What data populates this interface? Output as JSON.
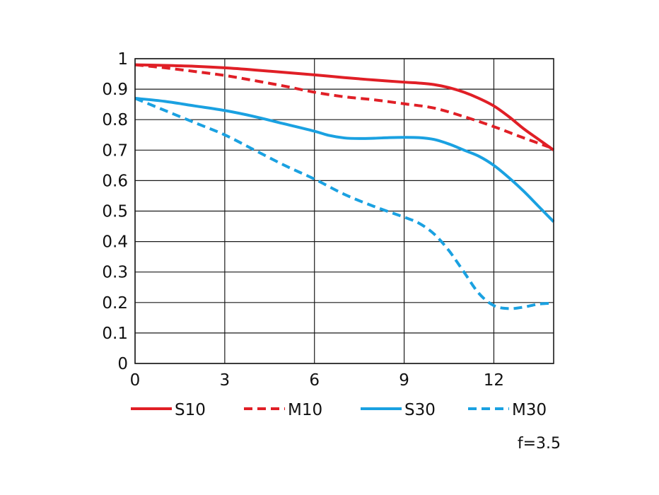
{
  "chart_data": {
    "type": "line",
    "title": "",
    "xlabel": "",
    "ylabel": "",
    "xlim": [
      0,
      14
    ],
    "ylim": [
      0,
      1
    ],
    "xticks": [
      0,
      3,
      6,
      9,
      12
    ],
    "yticks": [
      0,
      0.1,
      0.2,
      0.3,
      0.4,
      0.5,
      0.6,
      0.7,
      0.8,
      0.9,
      1
    ],
    "ytick_labels": [
      "0",
      "0.1",
      "0.2",
      "0.3",
      "0.4",
      "0.5",
      "0.6",
      "0.7",
      "0.8",
      "0.9",
      "1"
    ],
    "grid": true,
    "legend_placement": "bottom",
    "note": "f=3.5",
    "series": [
      {
        "name": "S10",
        "color": "#e01f26",
        "dashed": false,
        "x": [
          0,
          1,
          2,
          3,
          4,
          5,
          6,
          7,
          8,
          9,
          9.5,
          10,
          10.5,
          11,
          11.5,
          12,
          12.5,
          13,
          13.5,
          14
        ],
        "y": [
          0.98,
          0.978,
          0.975,
          0.97,
          0.963,
          0.955,
          0.947,
          0.938,
          0.93,
          0.923,
          0.92,
          0.915,
          0.905,
          0.89,
          0.87,
          0.845,
          0.81,
          0.77,
          0.735,
          0.7
        ]
      },
      {
        "name": "M10",
        "color": "#e01f26",
        "dashed": true,
        "x": [
          0,
          1,
          2,
          3,
          4,
          5,
          6,
          7,
          8,
          9,
          10,
          11,
          12,
          13,
          14
        ],
        "y": [
          0.98,
          0.97,
          0.958,
          0.945,
          0.928,
          0.91,
          0.89,
          0.875,
          0.865,
          0.852,
          0.838,
          0.81,
          0.777,
          0.74,
          0.705
        ]
      },
      {
        "name": "S30",
        "color": "#1aa1e1",
        "dashed": false,
        "x": [
          0,
          1,
          2,
          3,
          4,
          5,
          6,
          6.5,
          7,
          7.5,
          8,
          8.5,
          9,
          9.5,
          10,
          10.5,
          11,
          11.5,
          12,
          12.5,
          13,
          13.5,
          14
        ],
        "y": [
          0.87,
          0.86,
          0.845,
          0.83,
          0.81,
          0.786,
          0.762,
          0.748,
          0.74,
          0.738,
          0.739,
          0.741,
          0.742,
          0.741,
          0.735,
          0.72,
          0.7,
          0.68,
          0.65,
          0.61,
          0.565,
          0.515,
          0.465
        ]
      },
      {
        "name": "M30",
        "color": "#1aa1e1",
        "dashed": true,
        "x": [
          0,
          1,
          2,
          3,
          4,
          5,
          6,
          7,
          8,
          9,
          9.5,
          10,
          10.5,
          11,
          11.5,
          12,
          12.5,
          13,
          13.5,
          14
        ],
        "y": [
          0.87,
          0.83,
          0.79,
          0.75,
          0.7,
          0.65,
          0.605,
          0.555,
          0.515,
          0.48,
          0.46,
          0.425,
          0.37,
          0.3,
          0.23,
          0.19,
          0.18,
          0.185,
          0.195,
          0.198
        ]
      }
    ]
  }
}
